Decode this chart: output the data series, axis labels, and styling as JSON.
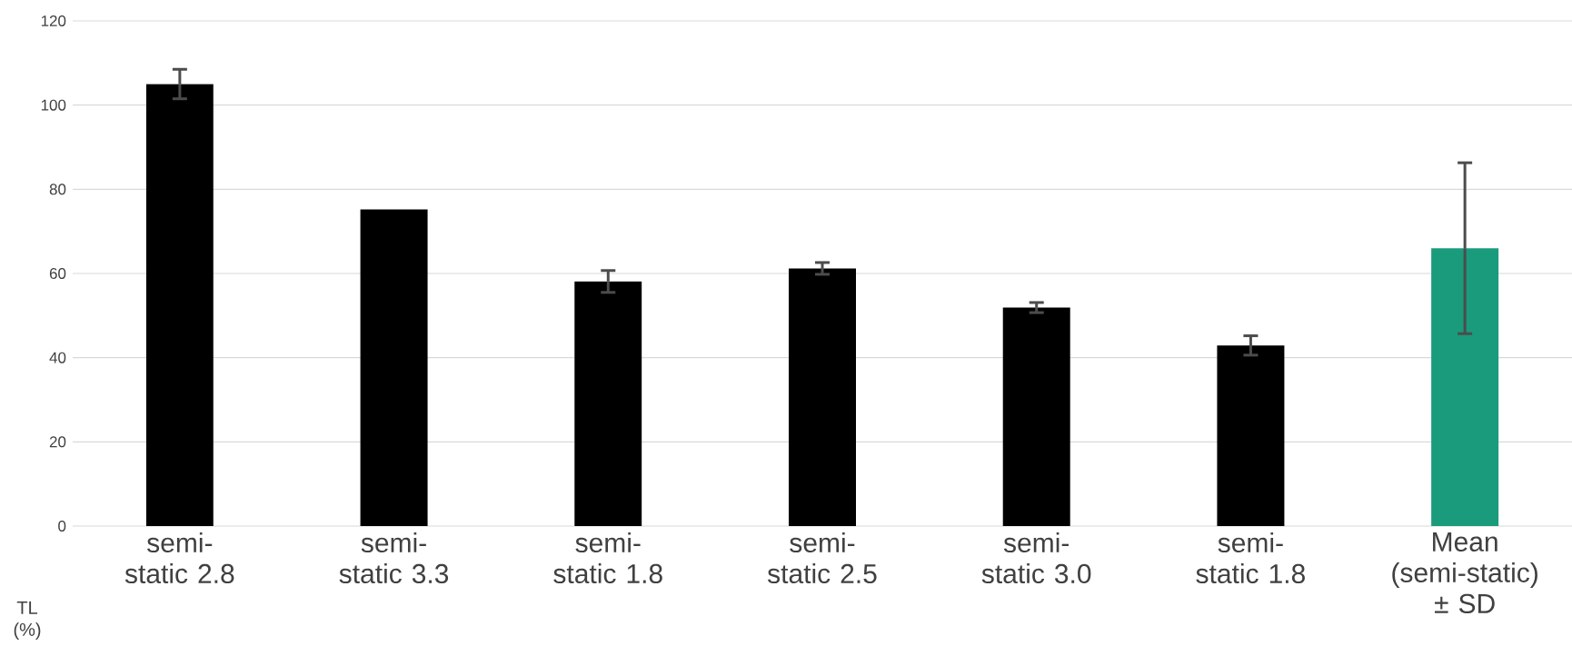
{
  "chart_data": {
    "type": "bar",
    "categories": [
      "semi-static 2.8",
      "semi-static 3.3",
      "semi-static 1.8",
      "semi-static 2.5",
      "semi-static 3.0",
      "semi-static 1.8",
      "Mean (semi-static) ± SD"
    ],
    "values": [
      105,
      75.2,
      58.1,
      61.2,
      51.9,
      42.9,
      66.0
    ],
    "errors": [
      3.5,
      null,
      2.6,
      1.4,
      1.2,
      2.3,
      20.3
    ],
    "colors": [
      "#000000",
      "#000000",
      "#000000",
      "#000000",
      "#000000",
      "#000000",
      "#1a9b7c"
    ],
    "xlabel": "TL (%)",
    "ylim": [
      0,
      120
    ],
    "yticks": [
      0,
      20,
      40,
      60,
      80,
      100,
      120
    ],
    "grid": "y"
  }
}
